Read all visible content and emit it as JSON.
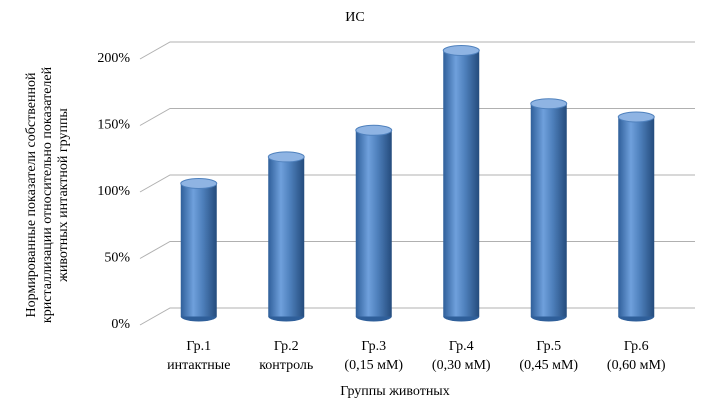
{
  "chart_data": {
    "type": "bar3d",
    "title": "ИС",
    "categories": [
      [
        "Гр.1",
        "интактные"
      ],
      [
        "Гр.2",
        "контроль"
      ],
      [
        "Гр.3",
        "(0,15 мМ)"
      ],
      [
        "Гр.4",
        "(0,30 мМ)"
      ],
      [
        "Гр.5",
        "(0,45 мМ)"
      ],
      [
        "Гр.6",
        "(0,60 мМ)"
      ]
    ],
    "values": [
      100,
      120,
      140,
      200,
      160,
      150
    ],
    "color": "#4f81bd",
    "ylim": [
      0,
      200
    ],
    "yticks": [
      {
        "value": 0,
        "label": "0%"
      },
      {
        "value": 50,
        "label": "50%"
      },
      {
        "value": 100,
        "label": "100%"
      },
      {
        "value": 150,
        "label": "150%"
      },
      {
        "value": 200,
        "label": "200%"
      }
    ],
    "grid": true,
    "xlabel": "Группы животных",
    "ylabel": [
      "Нормированные показатели собственной",
      "кристаллизации относительно показателей",
      "животных интактной группы"
    ]
  }
}
